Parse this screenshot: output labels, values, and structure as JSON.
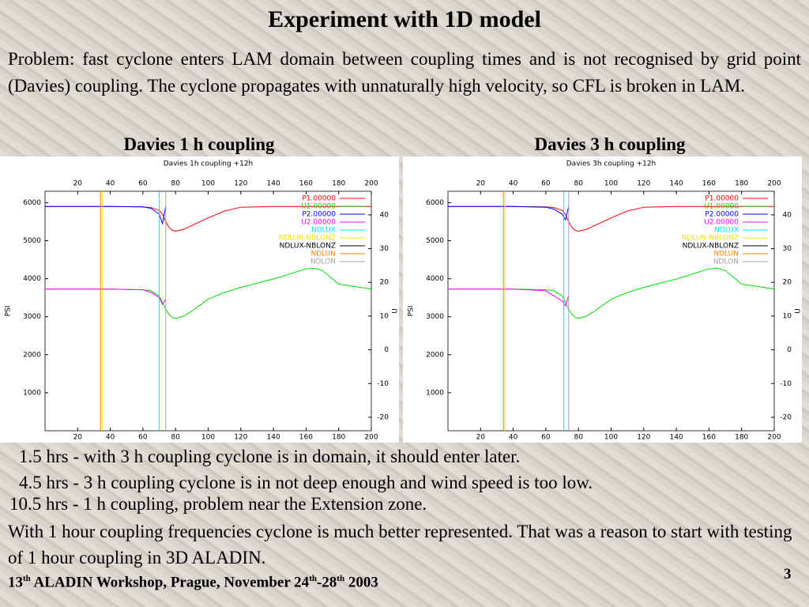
{
  "title": "Experiment with 1D model",
  "problem": "Problem: fast cyclone enters LAM domain between coupling times and is not recognised by grid point (Davies) coupling. The cyclone propagates with unnaturally high velocity, so CFL is broken in LAM.",
  "panel_titles": [
    "Davies 1 h coupling",
    "Davies 3 h coupling"
  ],
  "notes": [
    "1.5 hrs - with 3 h coupling cyclone is in domain, it should enter later.",
    "4.5 hrs - 3 h coupling cyclone is in not deep enough and wind speed is too low.",
    "10.5 hrs - 1 h coupling, problem near the Extension zone."
  ],
  "conclusion": "With 1 hour coupling frequencies cyclone is much better represented. That was a reason to start with testing of 1 hour coupling in 3D ALADIN.",
  "footer": [
    "13",
    "th",
    " ALADIN Workshop, Prague, November 24",
    "th",
    "-28",
    "th",
    " 2003"
  ],
  "page_number": "3",
  "chart_data": [
    {
      "type": "line",
      "title": "Davies 1h coupling +12h",
      "ylabel": "PSI",
      "y2label": "U",
      "x": [
        0,
        20,
        40,
        60,
        65,
        70,
        72,
        74,
        76,
        78,
        80,
        85,
        90,
        100,
        110,
        120,
        140,
        160,
        165,
        170,
        180,
        200
      ],
      "xlim": [
        0,
        200
      ],
      "xticks": [
        20,
        40,
        60,
        80,
        100,
        120,
        140,
        160,
        180,
        200
      ],
      "ylim": [
        0,
        6300
      ],
      "yticks": [
        1000,
        2000,
        3000,
        4000,
        5000,
        6000
      ],
      "y2lim": [
        -24,
        47
      ],
      "y2ticks": [
        -20,
        -10,
        0,
        10,
        20,
        30,
        40
      ],
      "series": [
        {
          "name": "P1.00000",
          "color": "#ff0000",
          "values": [
            5900,
            5900,
            5900,
            5890,
            5870,
            5800,
            5700,
            5500,
            5350,
            5270,
            5250,
            5300,
            5400,
            5600,
            5780,
            5880,
            5900,
            5900,
            5900,
            5900,
            5900,
            5900
          ]
        },
        {
          "name": "U1.00000",
          "color": "#00dd00",
          "axis": "y2",
          "values": [
            18,
            18,
            18,
            17.8,
            17.5,
            16,
            14,
            12,
            10.5,
            9.6,
            9.3,
            10,
            11.5,
            15,
            17,
            18.5,
            21,
            24,
            24.2,
            23.5,
            19.5,
            18
          ]
        },
        {
          "name": "P2.00000",
          "color": "#0000ff",
          "values": [
            5900,
            5900,
            5900,
            5890,
            5850,
            5700,
            5450,
            5900,
            null,
            null,
            null,
            null,
            null,
            null,
            null,
            null,
            null,
            null,
            null,
            null,
            null,
            null
          ]
        },
        {
          "name": "U2.00000",
          "color": "#ff00ff",
          "axis": "y2",
          "values": [
            18,
            18,
            18,
            17.8,
            17,
            15.5,
            13.5,
            15,
            null,
            null,
            null,
            null,
            null,
            null,
            null,
            null,
            null,
            null,
            null,
            null,
            null,
            null
          ]
        },
        {
          "name": "NDLUX",
          "color": "#00e5ff",
          "x_line": 70
        },
        {
          "name": "NDLUN-NBLONZ",
          "color": "#f0e000",
          "x_line": 35
        },
        {
          "name": "NDLUX-NBLONZ",
          "color": "#000000"
        },
        {
          "name": "NDLUN",
          "color": "#ff8000",
          "x_line": 34
        },
        {
          "name": "NDLON",
          "color": "#a0a0a0",
          "x_line": 74
        }
      ]
    },
    {
      "type": "line",
      "title": "Davies 3h coupling +12h",
      "ylabel": "PSI",
      "y2label": "U",
      "x": [
        0,
        20,
        40,
        60,
        65,
        70,
        72,
        74,
        76,
        78,
        80,
        85,
        90,
        100,
        110,
        120,
        140,
        160,
        165,
        170,
        180,
        200
      ],
      "xlim": [
        0,
        200
      ],
      "xticks": [
        20,
        40,
        60,
        80,
        100,
        120,
        140,
        160,
        180,
        200
      ],
      "ylim": [
        0,
        6300
      ],
      "yticks": [
        1000,
        2000,
        3000,
        4000,
        5000,
        6000
      ],
      "y2lim": [
        -24,
        47
      ],
      "y2ticks": [
        -20,
        -10,
        0,
        10,
        20,
        30,
        40
      ],
      "series": [
        {
          "name": "P1.00000",
          "color": "#ff0000",
          "values": [
            5900,
            5900,
            5900,
            5890,
            5870,
            5800,
            5700,
            5500,
            5350,
            5270,
            5250,
            5300,
            5400,
            5600,
            5780,
            5880,
            5900,
            5900,
            5900,
            5900,
            5900,
            5900
          ]
        },
        {
          "name": "U1.00000",
          "color": "#00dd00",
          "axis": "y2",
          "values": [
            18,
            18,
            18,
            17.8,
            17.5,
            16,
            14,
            12,
            10.5,
            9.6,
            9.3,
            10,
            11.5,
            15,
            17,
            18.5,
            21,
            24,
            24.2,
            23.5,
            19.5,
            18
          ]
        },
        {
          "name": "P2.00000",
          "color": "#0000ff",
          "values": [
            5900,
            5900,
            5900,
            5880,
            5830,
            5700,
            5550,
            5900,
            null,
            null,
            null,
            null,
            null,
            null,
            null,
            null,
            null,
            null,
            null,
            null,
            null,
            null
          ]
        },
        {
          "name": "U2.00000",
          "color": "#ff00ff",
          "axis": "y2",
          "values": [
            18,
            18,
            18,
            17.5,
            16,
            14.5,
            13,
            16,
            null,
            null,
            null,
            null,
            null,
            null,
            null,
            null,
            null,
            null,
            null,
            null,
            null,
            null
          ]
        },
        {
          "name": "NDLUX",
          "color": "#00e5ff",
          "x_line": 71
        },
        {
          "name": "NDLUN-NBLONZ",
          "color": "#f0e000",
          "x_line": 35
        },
        {
          "name": "NDLUX-NBLONZ",
          "color": "#000000"
        },
        {
          "name": "NDLUN",
          "color": "#ff8000",
          "x_line": 34
        },
        {
          "name": "NDLON",
          "color": "#a0a0a0",
          "x_line": 74
        }
      ]
    }
  ]
}
